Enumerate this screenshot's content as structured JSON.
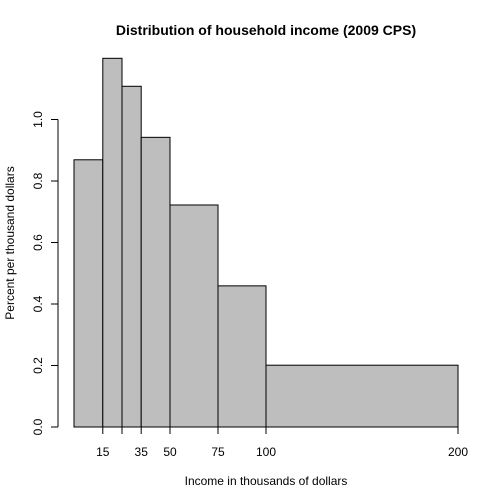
{
  "chart_data": {
    "type": "bar",
    "title": "Distribution of household income (2009 CPS)",
    "xlabel": "Income in thousands of dollars",
    "ylabel": "Percent per thousand dollars",
    "bins": [
      {
        "start": 0,
        "end": 15,
        "value": 0.869
      },
      {
        "start": 15,
        "end": 25,
        "value": 1.199
      },
      {
        "start": 25,
        "end": 35,
        "value": 1.108
      },
      {
        "start": 35,
        "end": 50,
        "value": 0.942
      },
      {
        "start": 50,
        "end": 75,
        "value": 0.722
      },
      {
        "start": 75,
        "end": 100,
        "value": 0.459
      },
      {
        "start": 100,
        "end": 200,
        "value": 0.201
      }
    ],
    "x_ticks": [
      {
        "value": 15,
        "label": "15"
      },
      {
        "value": 25,
        "label": ""
      },
      {
        "value": 35,
        "label": "35"
      },
      {
        "value": 50,
        "label": "50"
      },
      {
        "value": 75,
        "label": "75"
      },
      {
        "value": 100,
        "label": "100"
      },
      {
        "value": 200,
        "label": "200"
      }
    ],
    "y_ticks": [
      {
        "value": 0.0,
        "label": "0.0"
      },
      {
        "value": 0.2,
        "label": "0.2"
      },
      {
        "value": 0.4,
        "label": "0.4"
      },
      {
        "value": 0.6,
        "label": "0.6"
      },
      {
        "value": 0.8,
        "label": "0.8"
      },
      {
        "value": 1.0,
        "label": "1.0"
      }
    ],
    "xlim": [
      0,
      200
    ],
    "ylim": [
      0,
      1.2
    ],
    "grid": false,
    "legend": "none",
    "colors": {
      "bar_fill": "#bebebe",
      "bar_stroke": "#000000",
      "axis": "#000000",
      "background": "#ffffff"
    }
  }
}
